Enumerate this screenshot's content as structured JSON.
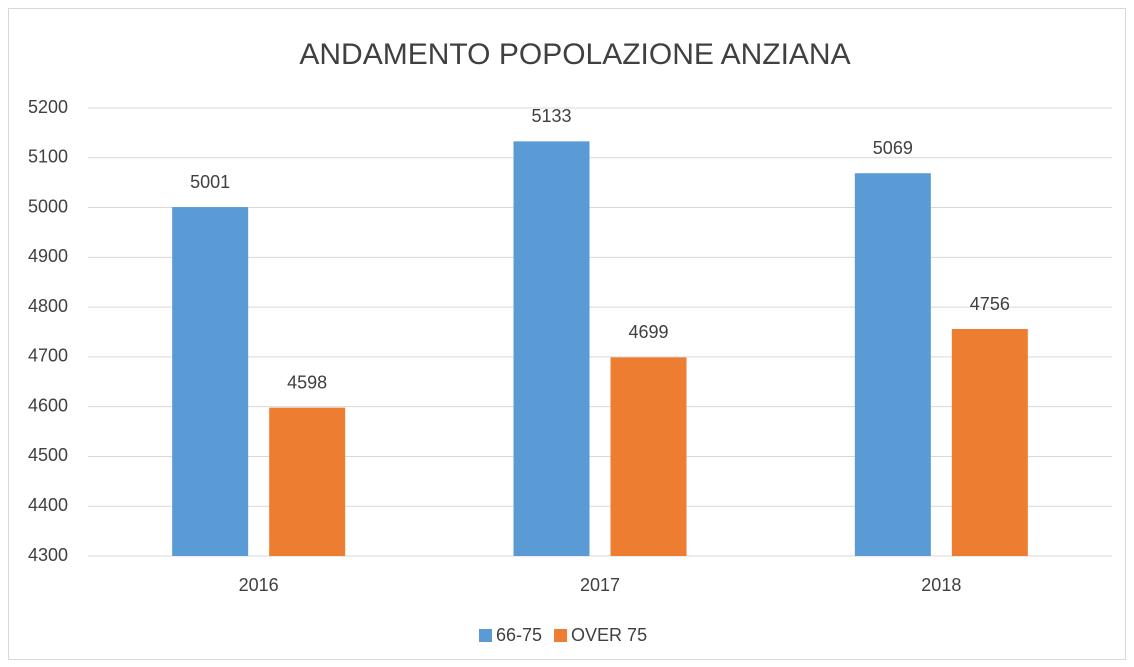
{
  "chart_data": {
    "type": "bar",
    "title": "ANDAMENTO POPOLAZIONE ANZIANA",
    "categories": [
      "2016",
      "2017",
      "2018"
    ],
    "series": [
      {
        "name": "66-75",
        "color": "#5b9bd5",
        "values": [
          5001,
          5133,
          5069
        ]
      },
      {
        "name": "OVER 75",
        "color": "#ed7d31",
        "values": [
          4598,
          4699,
          4756
        ]
      }
    ],
    "ylim": [
      4300,
      5200
    ],
    "yticks": [
      4300,
      4400,
      4500,
      4600,
      4700,
      4800,
      4900,
      5000,
      5100,
      5200
    ],
    "grid": true,
    "legend": "bottom"
  }
}
